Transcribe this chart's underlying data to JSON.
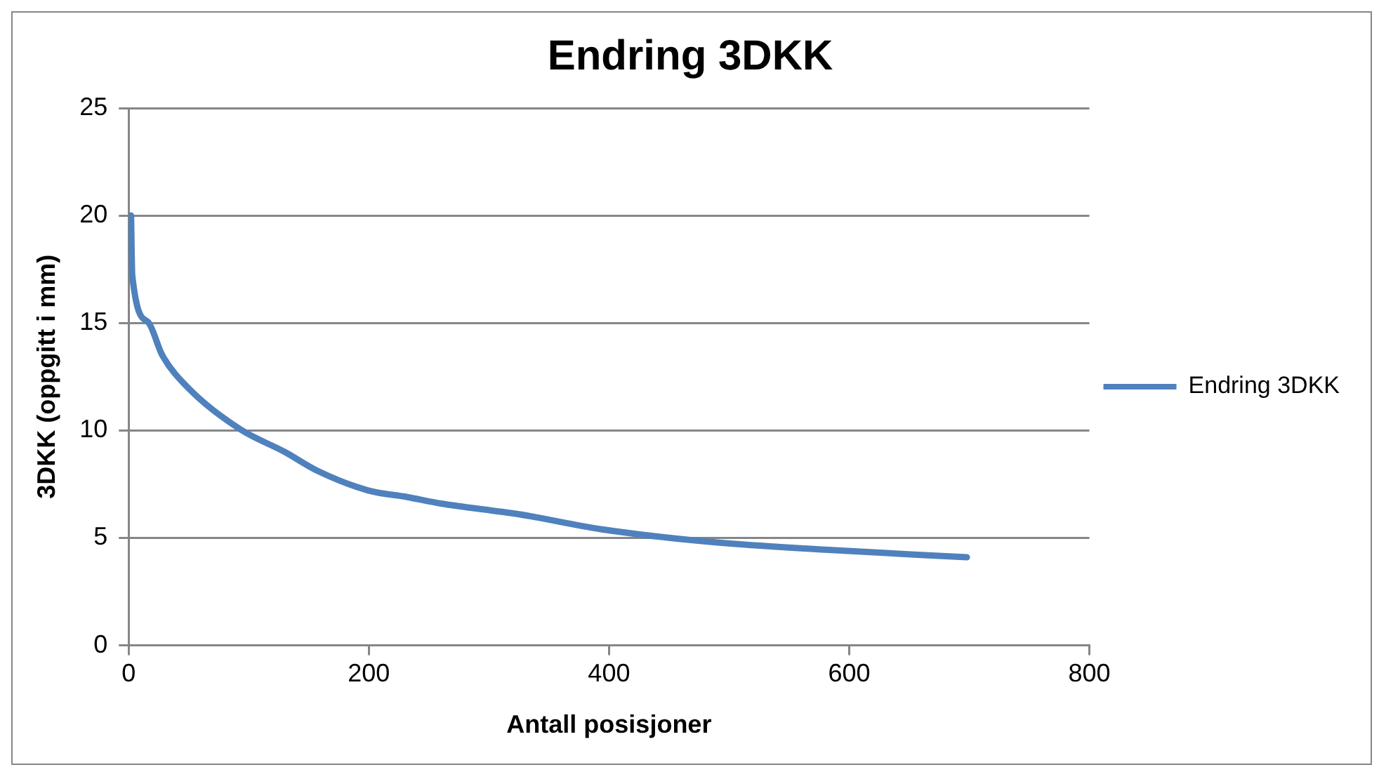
{
  "chart_data": {
    "type": "line",
    "title": "Endring 3DKK",
    "xlabel": "Antall posisjoner",
    "ylabel": "3DKK (oppgitt i mm)",
    "x": [
      2,
      3,
      16,
      28,
      51,
      93,
      130,
      158,
      200,
      232,
      260,
      325,
      394,
      487,
      580,
      698
    ],
    "series": [
      {
        "name": "Endring 3DKK",
        "color": "#4f81bd",
        "values": [
          20,
          17.2,
          15.05,
          13.5,
          11.9,
          10.05,
          9.0,
          8.1,
          7.2,
          6.9,
          6.6,
          6.1,
          5.4,
          4.8,
          4.45,
          4.1
        ]
      }
    ],
    "xlim": [
      0,
      800
    ],
    "xticks": [
      0,
      200,
      400,
      600,
      800
    ],
    "ylim": [
      0,
      25
    ],
    "yticks": [
      0,
      5,
      10,
      15,
      20,
      25
    ],
    "grid": "y",
    "legend": "right",
    "marker": "none",
    "line_style": "solid"
  }
}
